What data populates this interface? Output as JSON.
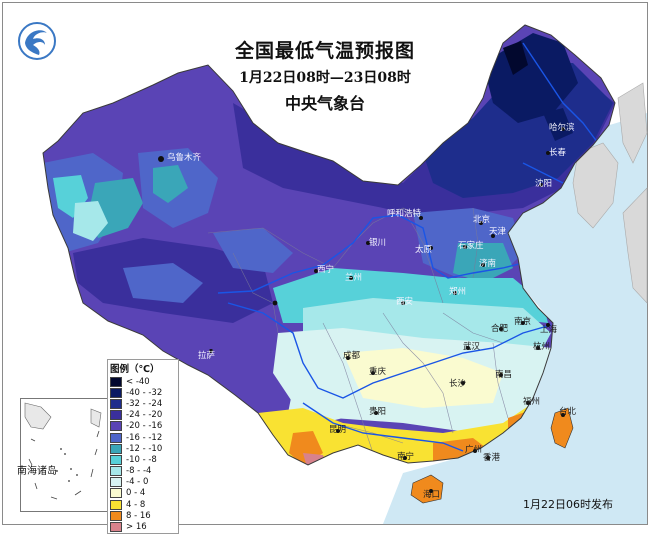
{
  "header": {
    "title": "全国最低气温预报图",
    "period": "1月22日08时—23日08时",
    "issuer": "中央气象台"
  },
  "logo_icon": "cma-logo-icon",
  "legend": {
    "title": "图例（℃）",
    "items": [
      {
        "label": "< -40",
        "color": "#02082e"
      },
      {
        "label": "-40 - -32",
        "color": "#0a1a63"
      },
      {
        "label": "-32 - -24",
        "color": "#1e2d8c"
      },
      {
        "label": "-24 - -20",
        "color": "#3a2f9c"
      },
      {
        "label": "-20 - -16",
        "color": "#5a44b5"
      },
      {
        "label": "-16 - -12",
        "color": "#4f66c9"
      },
      {
        "label": "-12 - -10",
        "color": "#3aa6b8"
      },
      {
        "label": "-10 - -8",
        "color": "#57d1d9"
      },
      {
        "label": "-8 - -4",
        "color": "#a6e8ea"
      },
      {
        "label": "-4 - 0",
        "color": "#d8f3f2"
      },
      {
        "label": "0 - 4",
        "color": "#fafbd0"
      },
      {
        "label": "4 - 8",
        "color": "#f9e232"
      },
      {
        "label": "8 - 16",
        "color": "#f08a1d"
      },
      {
        "label": "> 16",
        "color": "#d8828c"
      }
    ]
  },
  "inset": {
    "label": "南海诸岛"
  },
  "release": "1月22日06时发布",
  "cities": [
    {
      "name": "乌鲁木齐"
    },
    {
      "name": "哈尔滨"
    },
    {
      "name": "长春"
    },
    {
      "name": "沈阳"
    },
    {
      "name": "呼和浩特"
    },
    {
      "name": "北京"
    },
    {
      "name": "天津"
    },
    {
      "name": "银川"
    },
    {
      "name": "太原"
    },
    {
      "name": "石家庄"
    },
    {
      "name": "西宁"
    },
    {
      "name": "兰州"
    },
    {
      "name": "济南"
    },
    {
      "name": "郑州"
    },
    {
      "name": "西安"
    },
    {
      "name": "拉萨"
    },
    {
      "name": "成都"
    },
    {
      "name": "合肥"
    },
    {
      "name": "南京"
    },
    {
      "name": "上海"
    },
    {
      "name": "武汉"
    },
    {
      "name": "杭州"
    },
    {
      "name": "重庆"
    },
    {
      "name": "长沙"
    },
    {
      "name": "南昌"
    },
    {
      "name": "贵阳"
    },
    {
      "name": "福州"
    },
    {
      "name": "台北"
    },
    {
      "name": "昆明"
    },
    {
      "name": "南宁"
    },
    {
      "name": "广州"
    },
    {
      "name": "香港"
    },
    {
      "name": "海口"
    }
  ]
}
